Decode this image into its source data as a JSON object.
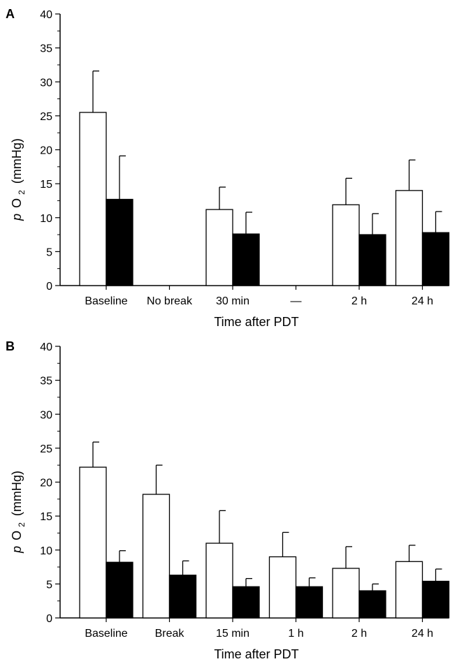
{
  "chart_data": [
    {
      "panel": "A",
      "type": "bar",
      "categories": [
        "Baseline",
        "No break",
        "30 min",
        "—",
        "2 h",
        "24 h"
      ],
      "series": [
        {
          "values": [
            25.5,
            null,
            11.2,
            null,
            11.9,
            14.0
          ],
          "errors": [
            6.1,
            null,
            3.3,
            null,
            3.9,
            4.5
          ],
          "color": "#ffffff"
        },
        {
          "values": [
            12.7,
            null,
            7.6,
            null,
            7.5,
            7.8
          ],
          "errors": [
            6.4,
            null,
            3.2,
            null,
            3.1,
            3.1
          ],
          "color": "#000000"
        }
      ],
      "xlabel": "Time after PDT",
      "ylabel": {
        "italic": "p",
        "main": "O",
        "sub": "2",
        "unit": "(mmHg)"
      },
      "ylim": [
        0,
        40
      ],
      "yticks": [
        0,
        5,
        10,
        15,
        20,
        25,
        30,
        35,
        40
      ],
      "grid": false
    },
    {
      "panel": "B",
      "type": "bar",
      "categories": [
        "Baseline",
        "Break",
        "15 min",
        "1 h",
        "2 h",
        "24 h"
      ],
      "series": [
        {
          "values": [
            22.2,
            18.2,
            11.0,
            9.0,
            7.3,
            8.3
          ],
          "errors": [
            3.7,
            4.3,
            4.8,
            3.6,
            3.2,
            2.4
          ],
          "color": "#ffffff"
        },
        {
          "values": [
            8.2,
            6.3,
            4.6,
            4.6,
            4.0,
            5.4
          ],
          "errors": [
            1.7,
            2.1,
            1.2,
            1.3,
            1.0,
            1.8
          ],
          "color": "#000000"
        }
      ],
      "xlabel": "Time after PDT",
      "ylabel": {
        "italic": "p",
        "main": "O",
        "sub": "2",
        "unit": "(mmHg)"
      },
      "ylim": [
        0,
        40
      ],
      "yticks": [
        0,
        5,
        10,
        15,
        20,
        25,
        30,
        35,
        40
      ],
      "grid": false
    }
  ]
}
